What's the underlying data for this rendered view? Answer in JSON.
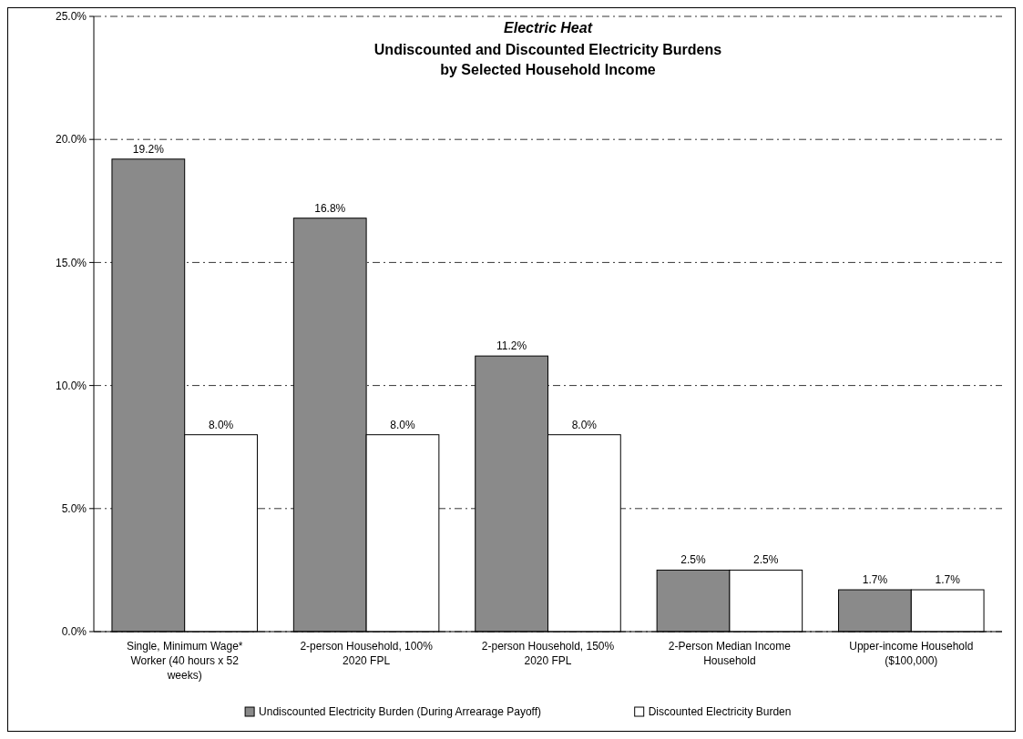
{
  "chart_data": {
    "type": "bar",
    "title": "Electric Heat",
    "subtitle": "Undiscounted and Discounted Electricity Burdens by Selected Household Income",
    "categories": [
      "Single, Minimum Wage* Worker (40 hours x 52 weeks)",
      "2-person Household, 100% 2020 FPL",
      "2-person Household, 150% 2020 FPL",
      "2-Person Median Income Household",
      "Upper-income Household ($100,000)"
    ],
    "series": [
      {
        "name": "Undiscounted Electricity Burden (During Arrearage Payoff)",
        "color": "#8a8a8a",
        "values": [
          19.2,
          16.8,
          11.2,
          2.5,
          1.7
        ],
        "value_labels": [
          "19.2%",
          "16.8%",
          "11.2%",
          "2.5%",
          "1.7%"
        ]
      },
      {
        "name": "Discounted Electricity Burden",
        "color": "#ffffff",
        "values": [
          8.0,
          8.0,
          8.0,
          2.5,
          1.7
        ],
        "value_labels": [
          "8.0%",
          "8.0%",
          "8.0%",
          "2.5%",
          "1.7%"
        ]
      }
    ],
    "ylim": [
      0,
      25
    ],
    "yticks": [
      {
        "value": 0,
        "label": "0.0%"
      },
      {
        "value": 5,
        "label": "5.0%"
      },
      {
        "value": 10,
        "label": "10.0%"
      },
      {
        "value": 15,
        "label": "15.0%"
      },
      {
        "value": 20,
        "label": "20.0%"
      },
      {
        "value": 25,
        "label": "25.0%"
      }
    ],
    "grid": "y",
    "legend": "bottom"
  }
}
